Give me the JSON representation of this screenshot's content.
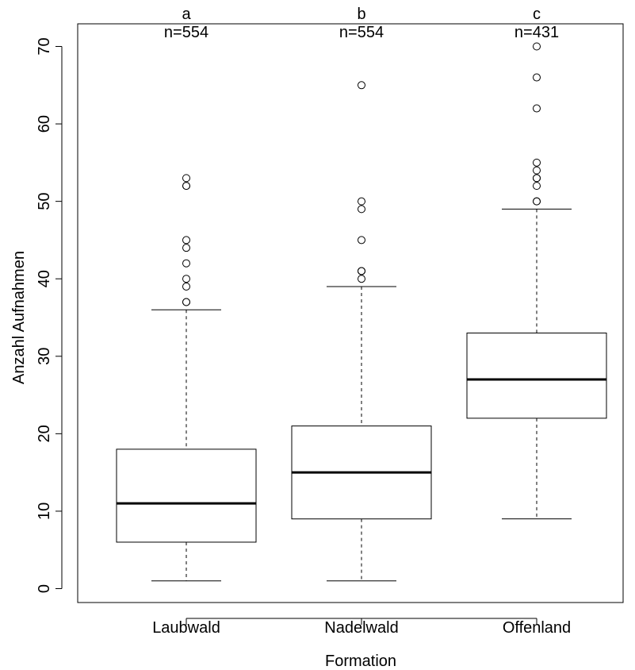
{
  "chart_data": {
    "type": "boxplot",
    "xlabel": "Formation",
    "ylabel": "Anzahl Aufnahmen",
    "ylim": [
      -2,
      73
    ],
    "yticks": [
      "0",
      "10",
      "20",
      "30",
      "40",
      "50",
      "60",
      "70"
    ],
    "ytick_values": [
      0,
      10,
      20,
      30,
      40,
      50,
      60,
      70
    ],
    "grid": false,
    "categories": [
      "Laubwald",
      "Nadelwald",
      "Offenland"
    ],
    "boxes": [
      {
        "category": "Laubwald",
        "group_letter": "a",
        "n_label": "n=554",
        "whisker_low": 1,
        "q1": 6,
        "median": 11,
        "q3": 18,
        "whisker_high": 36,
        "outliers": [
          37,
          37,
          39,
          40,
          42,
          44,
          45,
          52,
          52,
          53
        ]
      },
      {
        "category": "Nadelwald",
        "group_letter": "b",
        "n_label": "n=554",
        "whisker_low": 1,
        "q1": 9,
        "median": 15,
        "q3": 21,
        "whisker_high": 39,
        "outliers": [
          40,
          41,
          41,
          45,
          49,
          50,
          65
        ]
      },
      {
        "category": "Offenland",
        "group_letter": "c",
        "n_label": "n=431",
        "whisker_low": 9,
        "q1": 22,
        "median": 27,
        "q3": 33,
        "whisker_high": 49,
        "outliers": [
          50,
          50,
          52,
          53,
          53,
          54,
          55,
          62,
          66,
          70
        ]
      }
    ]
  }
}
